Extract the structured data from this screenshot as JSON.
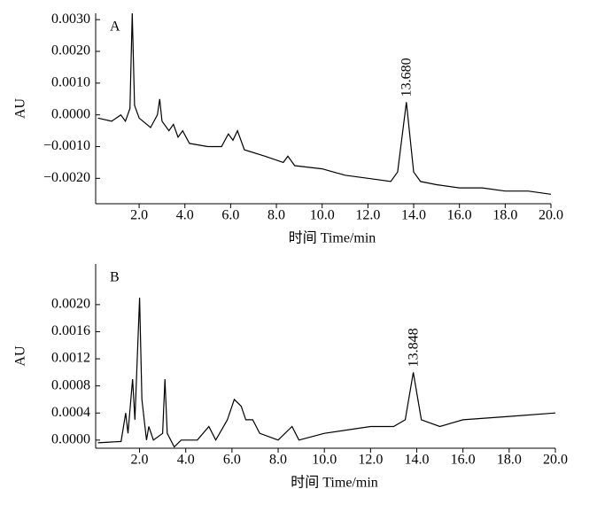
{
  "chart_data": [
    {
      "type": "line",
      "panel_label": "A",
      "ylabel": "AU",
      "xlabel": "时间 Time/min",
      "annotation": "13.680",
      "color": "#000000",
      "x": [
        0.2,
        0.8,
        1.2,
        1.4,
        1.6,
        1.7,
        1.8,
        2.0,
        2.5,
        2.8,
        2.9,
        3.0,
        3.3,
        3.5,
        3.7,
        3.9,
        4.2,
        5.0,
        5.6,
        5.9,
        6.1,
        6.3,
        6.6,
        7.5,
        8.3,
        8.5,
        8.8,
        10.0,
        11.0,
        12.0,
        13.0,
        13.3,
        13.68,
        14.0,
        14.3,
        15.0,
        16.0,
        17.0,
        18.0,
        19.0,
        20.0
      ],
      "values": [
        -0.0001,
        -0.0002,
        0.0,
        -0.0002,
        0.0002,
        0.0032,
        0.0003,
        -0.0001,
        -0.0004,
        0.0,
        0.0005,
        -0.0002,
        -0.0005,
        -0.0003,
        -0.0007,
        -0.0005,
        -0.0009,
        -0.001,
        -0.001,
        -0.0006,
        -0.0008,
        -0.0005,
        -0.0011,
        -0.0013,
        -0.0015,
        -0.0013,
        -0.0016,
        -0.0017,
        -0.0019,
        -0.002,
        -0.0021,
        -0.0018,
        0.0004,
        -0.0018,
        -0.0021,
        -0.0022,
        -0.0023,
        -0.0023,
        -0.0024,
        -0.0024,
        -0.0025
      ],
      "xlim": [
        0.1,
        20
      ],
      "ylim": [
        -0.0028,
        0.0032
      ],
      "xticks": [
        {
          "value": 2,
          "label": "2.0"
        },
        {
          "value": 4,
          "label": "4.0"
        },
        {
          "value": 6,
          "label": "6.0"
        },
        {
          "value": 8,
          "label": "8.0"
        },
        {
          "value": 10,
          "label": "10.0"
        },
        {
          "value": 12,
          "label": "12.0"
        },
        {
          "value": 14,
          "label": "14.0"
        },
        {
          "value": 16,
          "label": "16.0"
        },
        {
          "value": 18,
          "label": "18.0"
        },
        {
          "value": 20,
          "label": "20.0"
        }
      ],
      "yticks": [
        {
          "value": -0.002,
          "label": "−0.0020"
        },
        {
          "value": -0.001,
          "label": "−0.0010"
        },
        {
          "value": 0,
          "label": "0.0000"
        },
        {
          "value": 0.001,
          "label": "0.0010"
        },
        {
          "value": 0.002,
          "label": "0.0020"
        },
        {
          "value": 0.003,
          "label": "0.0030"
        }
      ]
    },
    {
      "type": "line",
      "panel_label": "B",
      "ylabel": "AU",
      "xlabel": "时间  Time/min",
      "annotation": "13.848",
      "color": "#000000",
      "x": [
        0.2,
        1.2,
        1.4,
        1.5,
        1.7,
        1.8,
        2.0,
        2.1,
        2.3,
        2.4,
        2.6,
        3.0,
        3.1,
        3.2,
        3.5,
        3.8,
        4.5,
        5.0,
        5.3,
        5.8,
        6.1,
        6.4,
        6.6,
        6.9,
        7.2,
        8.0,
        8.6,
        8.9,
        10.0,
        12.0,
        13.0,
        13.5,
        13.85,
        14.2,
        15.0,
        16.0,
        18.0,
        20.0
      ],
      "values": [
        -4e-05,
        -2e-05,
        0.0004,
        0.0001,
        0.0009,
        0.0003,
        0.0021,
        0.0006,
        0.0,
        0.0002,
        0.0,
        0.0001,
        0.0009,
        0.0001,
        -0.0001,
        0.0,
        0.0,
        0.0002,
        0.0,
        0.0003,
        0.0006,
        0.0005,
        0.0003,
        0.0003,
        0.0001,
        0.0,
        0.0002,
        0.0,
        0.0001,
        0.0002,
        0.0002,
        0.0003,
        0.001,
        0.0003,
        0.0002,
        0.0003,
        0.00035,
        0.0004
      ],
      "xlim": [
        0.1,
        20
      ],
      "ylim": [
        -0.00012,
        0.0026
      ],
      "xticks": [
        {
          "value": 2,
          "label": "2.0"
        },
        {
          "value": 4,
          "label": "4.0"
        },
        {
          "value": 6,
          "label": "6.0"
        },
        {
          "value": 8,
          "label": "8.0"
        },
        {
          "value": 10,
          "label": "10.0"
        },
        {
          "value": 12,
          "label": "12.0"
        },
        {
          "value": 14,
          "label": "14.0"
        },
        {
          "value": 16,
          "label": "16.0"
        },
        {
          "value": 18,
          "label": "18.0"
        },
        {
          "value": 20,
          "label": "20.0"
        }
      ],
      "yticks": [
        {
          "value": 0,
          "label": "0.0000"
        },
        {
          "value": 0.0004,
          "label": "0.0004"
        },
        {
          "value": 0.0008,
          "label": "0.0008"
        },
        {
          "value": 0.0012,
          "label": "0.0012"
        },
        {
          "value": 0.0016,
          "label": "0.0016"
        },
        {
          "value": 0.002,
          "label": "0.0020"
        }
      ]
    }
  ]
}
